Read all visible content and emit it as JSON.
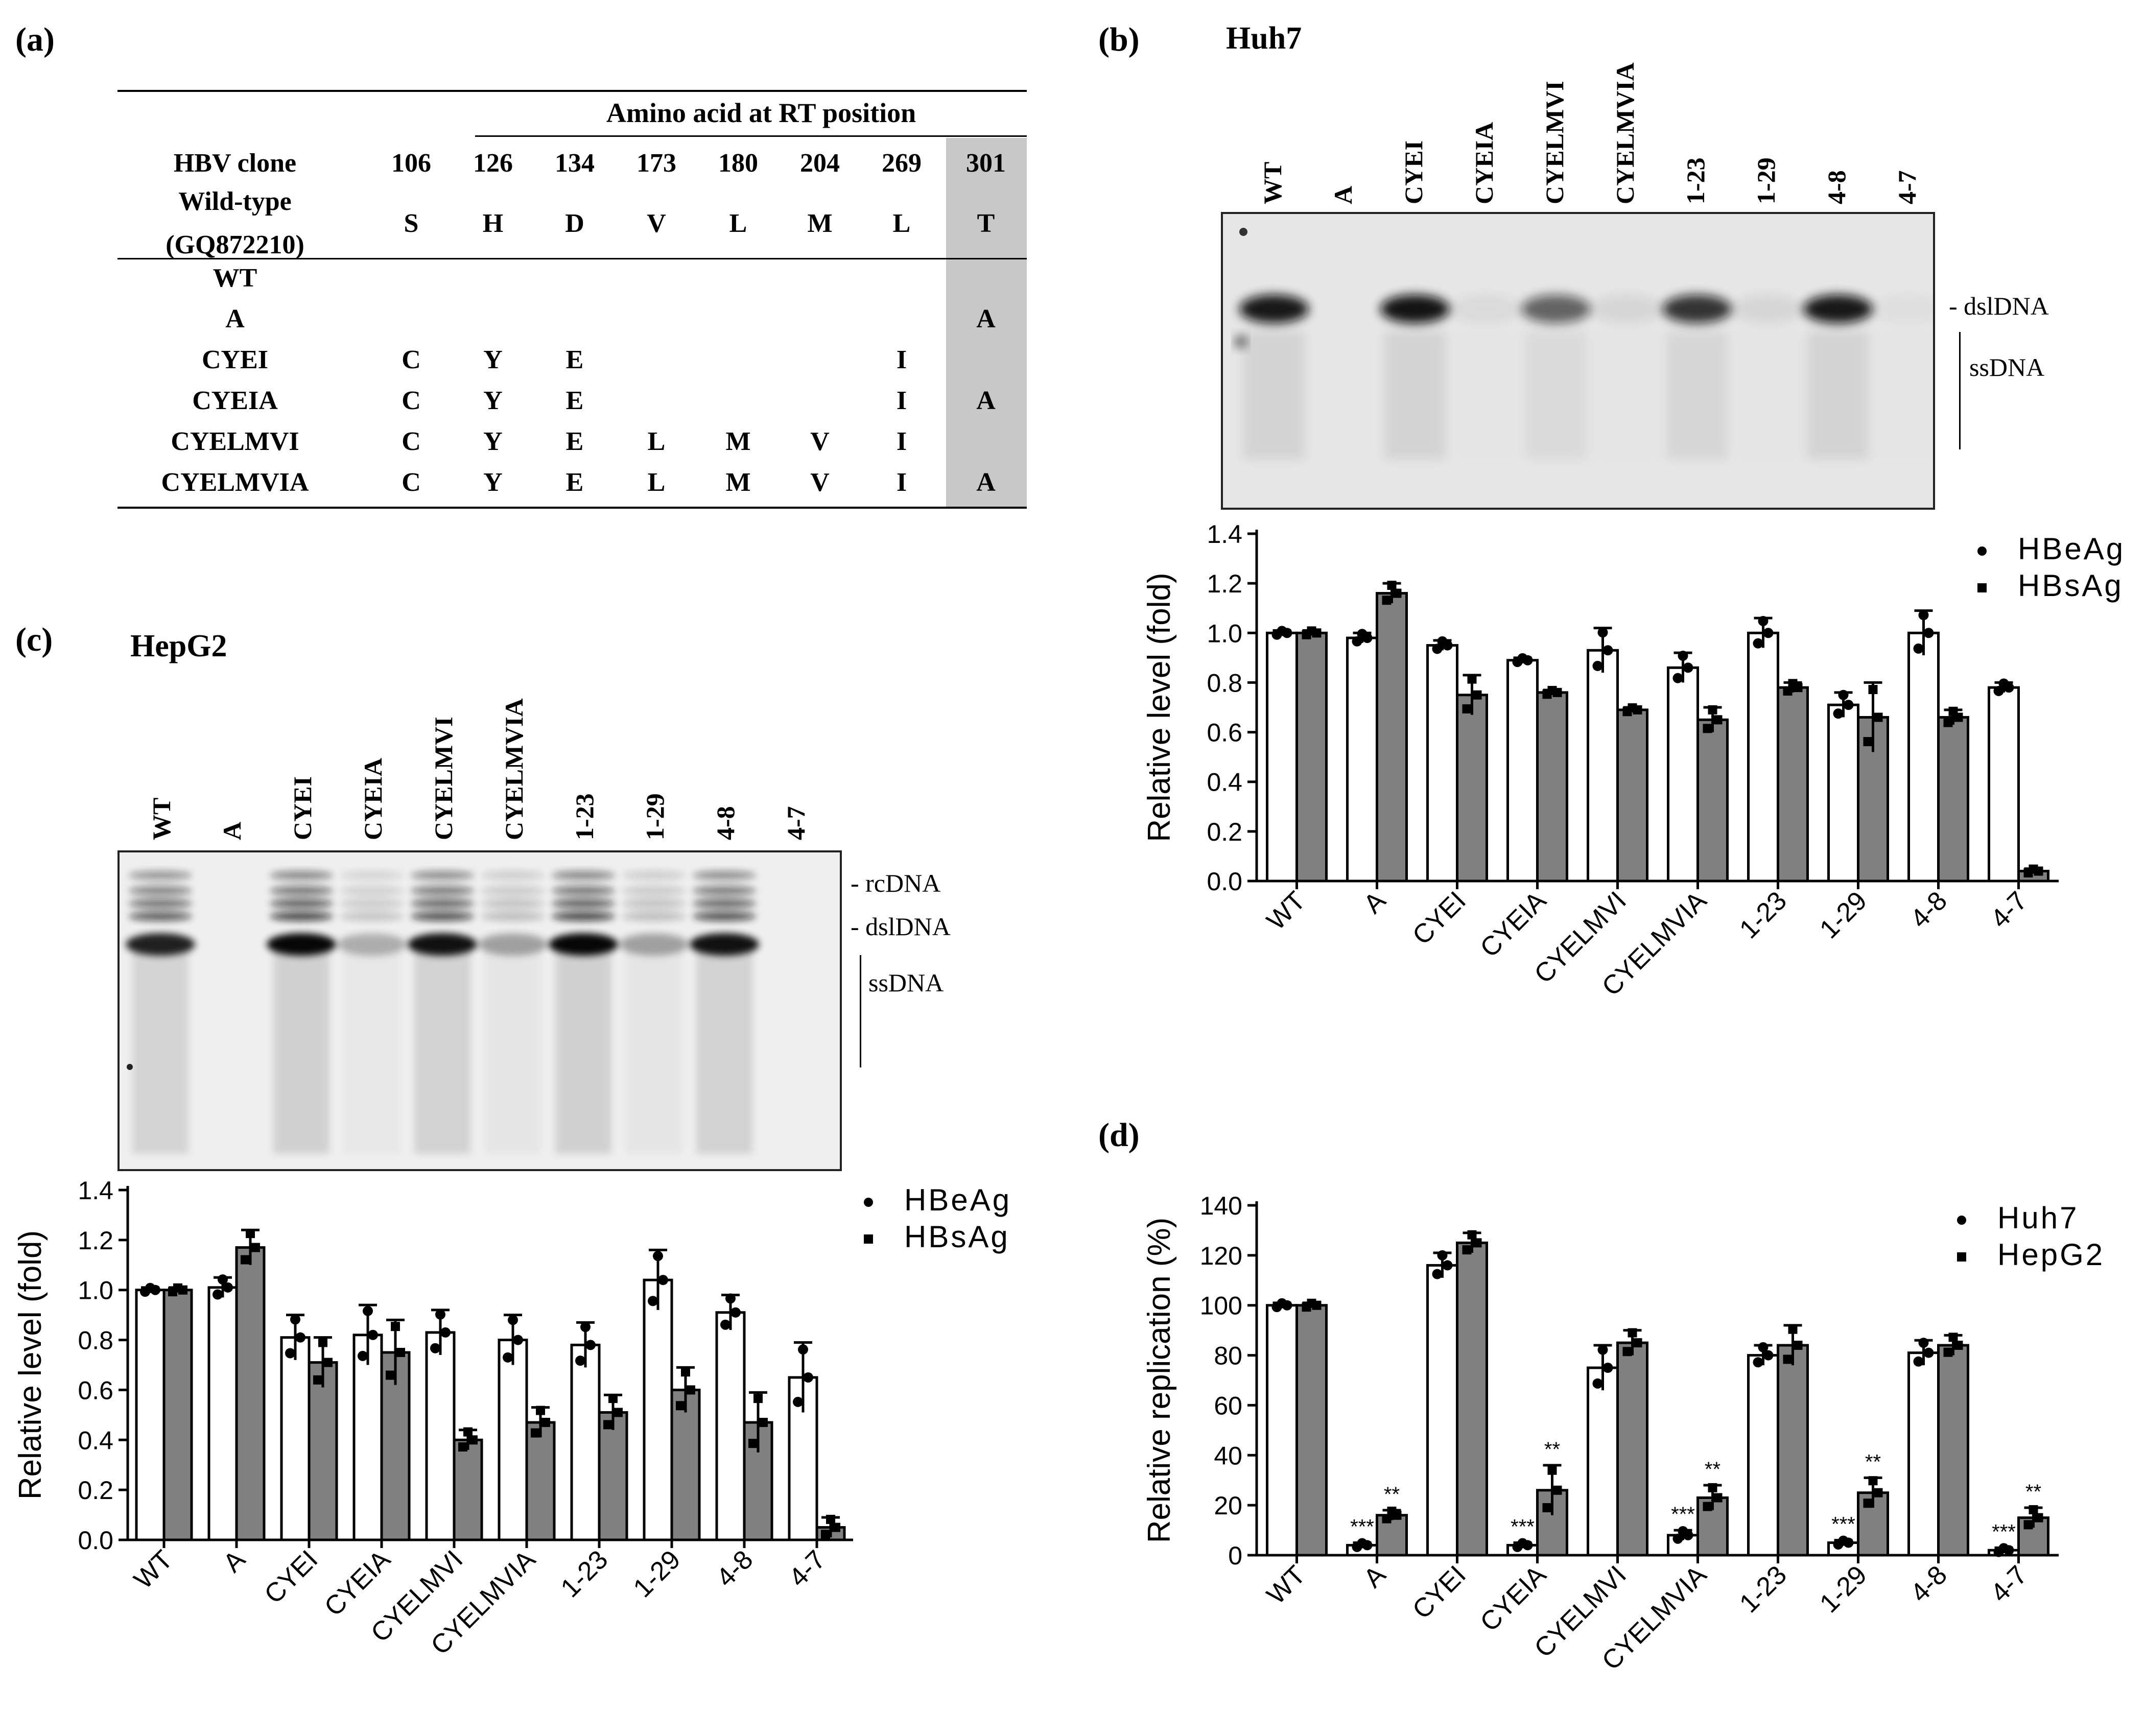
{
  "panels": {
    "a": {
      "label": "(a)"
    },
    "b": {
      "label": "(b)",
      "cell_line": "Huh7"
    },
    "c": {
      "label": "(c)",
      "cell_line": "HepG2"
    },
    "d": {
      "label": "(d)"
    }
  },
  "table": {
    "group_header": "Amino acid at RT position",
    "clone_header": "HBV clone",
    "wildtype_label_1": "Wild-type",
    "wildtype_label_2": "(GQ872210)",
    "positions": [
      "106",
      "126",
      "134",
      "173",
      "180",
      "204",
      "269",
      "301"
    ],
    "wildtype_residues": [
      "S",
      "H",
      "D",
      "V",
      "L",
      "M",
      "L",
      "T"
    ],
    "highlight_color": "#c8c8c8",
    "rows": [
      {
        "clone": "WT",
        "cells": [
          "",
          "",
          "",
          "",
          "",
          "",
          "",
          ""
        ]
      },
      {
        "clone": "A",
        "cells": [
          "",
          "",
          "",
          "",
          "",
          "",
          "",
          "A"
        ]
      },
      {
        "clone": "CYEI",
        "cells": [
          "C",
          "Y",
          "E",
          "",
          "",
          "",
          "I",
          ""
        ]
      },
      {
        "clone": "CYEIA",
        "cells": [
          "C",
          "Y",
          "E",
          "",
          "",
          "",
          "I",
          "A"
        ]
      },
      {
        "clone": "CYELMVI",
        "cells": [
          "C",
          "Y",
          "E",
          "L",
          "M",
          "V",
          "I",
          ""
        ]
      },
      {
        "clone": "CYELMVIA",
        "cells": [
          "C",
          "Y",
          "E",
          "L",
          "M",
          "V",
          "I",
          "A"
        ]
      }
    ]
  },
  "blots": {
    "b": {
      "lanes": [
        "WT",
        "A",
        "CYEI",
        "CYEIA",
        "CYELMVI",
        "CYELMVIA",
        "1-23",
        "1-29",
        "4-8",
        "4-7"
      ],
      "band_labels": {
        "dsl": "- dslDNA",
        "ss": "ssDNA"
      }
    },
    "c": {
      "lanes": [
        "WT",
        "A",
        "CYEI",
        "CYEIA",
        "CYELMVI",
        "CYELMVIA",
        "1-23",
        "1-29",
        "4-8",
        "4-7"
      ],
      "band_labels": {
        "rc": "- rcDNA",
        "dsl": "- dslDNA",
        "ss": "ssDNA"
      }
    }
  },
  "chart_data": [
    {
      "panel": "b",
      "type": "bar",
      "ylabel": "Relative level (fold)",
      "ylim": [
        0,
        1.4
      ],
      "yticks": [
        "0.0",
        "0.2",
        "0.4",
        "0.6",
        "0.8",
        "1.0",
        "1.2",
        "1.4"
      ],
      "categories": [
        "WT",
        "A",
        "CYEI",
        "CYEIA",
        "CYELMVI",
        "CYELMVIA",
        "1-23",
        "1-29",
        "4-8",
        "4-7"
      ],
      "legend_position": "top-right",
      "series": [
        {
          "name": "HBeAg",
          "color": "#ffffff",
          "marker": "circle",
          "values": [
            1.0,
            0.98,
            0.95,
            0.89,
            0.93,
            0.86,
            1.0,
            0.71,
            1.0,
            0.78
          ],
          "errors": [
            0.01,
            0.02,
            0.02,
            0.01,
            0.09,
            0.06,
            0.06,
            0.05,
            0.09,
            0.02
          ]
        },
        {
          "name": "HBsAg",
          "color": "#808080",
          "marker": "square",
          "values": [
            1.0,
            1.16,
            0.75,
            0.76,
            0.69,
            0.65,
            0.78,
            0.66,
            0.66,
            0.04
          ],
          "errors": [
            0.01,
            0.04,
            0.08,
            0.01,
            0.01,
            0.05,
            0.02,
            0.14,
            0.03,
            0.01
          ]
        }
      ]
    },
    {
      "panel": "c",
      "type": "bar",
      "ylabel": "Relative level (fold)",
      "ylim": [
        0,
        1.4
      ],
      "yticks": [
        "0.0",
        "0.2",
        "0.4",
        "0.6",
        "0.8",
        "1.0",
        "1.2",
        "1.4"
      ],
      "categories": [
        "WT",
        "A",
        "CYEI",
        "CYEIA",
        "CYELMVI",
        "CYELMVIA",
        "1-23",
        "1-29",
        "4-8",
        "4-7"
      ],
      "legend_position": "top-right",
      "series": [
        {
          "name": "HBeAg",
          "color": "#ffffff",
          "marker": "circle",
          "values": [
            1.0,
            1.01,
            0.81,
            0.82,
            0.83,
            0.8,
            0.78,
            1.04,
            0.91,
            0.65
          ],
          "errors": [
            0.01,
            0.04,
            0.09,
            0.12,
            0.09,
            0.1,
            0.09,
            0.12,
            0.07,
            0.14
          ]
        },
        {
          "name": "HBsAg",
          "color": "#808080",
          "marker": "square",
          "values": [
            1.0,
            1.17,
            0.71,
            0.75,
            0.4,
            0.47,
            0.51,
            0.6,
            0.47,
            0.05
          ],
          "errors": [
            0.01,
            0.07,
            0.1,
            0.13,
            0.04,
            0.06,
            0.07,
            0.09,
            0.12,
            0.04
          ]
        }
      ]
    },
    {
      "panel": "d",
      "type": "bar",
      "ylabel": "Relative replication (%)",
      "ylim": [
        0,
        140
      ],
      "yticks": [
        "0",
        "20",
        "40",
        "60",
        "80",
        "100",
        "120",
        "140"
      ],
      "categories": [
        "WT",
        "A",
        "CYEI",
        "CYEIA",
        "CYELMVI",
        "CYELMVIA",
        "1-23",
        "1-29",
        "4-8",
        "4-7"
      ],
      "legend_position": "top-right",
      "series": [
        {
          "name": "Huh7",
          "color": "#ffffff",
          "marker": "circle",
          "values": [
            100,
            4,
            116,
            4,
            75,
            8,
            80,
            5,
            81,
            2
          ],
          "errors": [
            1,
            1,
            5,
            1,
            9,
            2,
            4,
            1,
            5,
            1
          ],
          "annotations": [
            "",
            "***",
            "",
            "***",
            "",
            "***",
            "",
            "***",
            "",
            "***"
          ]
        },
        {
          "name": "HepG2",
          "color": "#808080",
          "marker": "square",
          "values": [
            100,
            16,
            125,
            26,
            85,
            23,
            84,
            25,
            84,
            15
          ],
          "errors": [
            1,
            2,
            4,
            10,
            5,
            5,
            8,
            6,
            4,
            4
          ],
          "annotations": [
            "",
            "**",
            "",
            "**",
            "",
            "**",
            "",
            "**",
            "",
            "**"
          ]
        }
      ]
    }
  ]
}
